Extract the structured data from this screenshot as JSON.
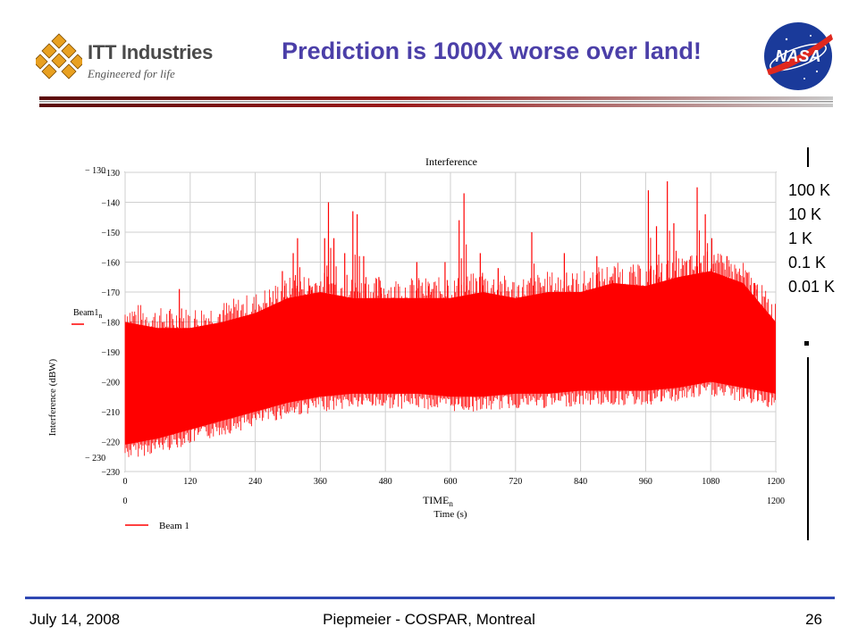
{
  "header": {
    "title": "Prediction is 1000X worse over land!",
    "itt_name": "ITT Industries",
    "itt_tagline": "Engineered for life",
    "nasa_text": "NASA",
    "accent_color": "#4b3fa8",
    "rule_color_dark": "#7a1010",
    "rule_color_light": "#c0c0c0"
  },
  "chart_data": {
    "type": "line",
    "title": "Interference",
    "ylabel": "Interference (dBW)",
    "xlabel": "TIME",
    "xlabel_sub": "n",
    "xlabel2": "Time (s)",
    "ylim": [
      -230,
      -130
    ],
    "xlim": [
      0,
      1200
    ],
    "yticks": [
      "-130",
      "-140",
      "-150",
      "-160",
      "-170",
      "-180",
      "-190",
      "-200",
      "-210",
      "-220",
      "-230"
    ],
    "xticks": [
      "0",
      "120",
      "240",
      "360",
      "480",
      "600",
      "720",
      "840",
      "960",
      "1080",
      "1200"
    ],
    "ymin_label": "− 230",
    "ymax_label": "− 130",
    "xmin_label": "0",
    "xmax_label": "1200",
    "grid": true,
    "series_color": "#ff0000",
    "series": [
      {
        "name": "Beam1",
        "name_sub": "n",
        "legend_label": "Beam 1",
        "x": [
          0,
          60,
          120,
          180,
          240,
          300,
          360,
          420,
          480,
          540,
          600,
          660,
          720,
          780,
          840,
          900,
          960,
          1020,
          1080,
          1140,
          1200
        ],
        "upper": [
          -180,
          -182,
          -182,
          -180,
          -177,
          -172,
          -170,
          -172,
          -172,
          -172,
          -172,
          -170,
          -172,
          -170,
          -170,
          -167,
          -168,
          -165,
          -163,
          -167,
          -180
        ],
        "lower": [
          -221,
          -219,
          -216,
          -213,
          -210,
          -207,
          -205,
          -204,
          -204,
          -204,
          -205,
          -205,
          -204,
          -204,
          -203,
          -203,
          -203,
          -202,
          -200,
          -202,
          -204
        ],
        "peaks": [
          {
            "x": 100,
            "y": -169
          },
          {
            "x": 290,
            "y": -163
          },
          {
            "x": 310,
            "y": -157
          },
          {
            "x": 318,
            "y": -152
          },
          {
            "x": 340,
            "y": -168
          },
          {
            "x": 368,
            "y": -152
          },
          {
            "x": 375,
            "y": -140
          },
          {
            "x": 385,
            "y": -152
          },
          {
            "x": 405,
            "y": -157
          },
          {
            "x": 420,
            "y": -143
          },
          {
            "x": 428,
            "y": -144
          },
          {
            "x": 440,
            "y": -158
          },
          {
            "x": 468,
            "y": -165
          },
          {
            "x": 538,
            "y": -160
          },
          {
            "x": 560,
            "y": -168
          },
          {
            "x": 590,
            "y": -160
          },
          {
            "x": 616,
            "y": -146
          },
          {
            "x": 625,
            "y": -137
          },
          {
            "x": 655,
            "y": -157
          },
          {
            "x": 688,
            "y": -162
          },
          {
            "x": 750,
            "y": -150
          },
          {
            "x": 810,
            "y": -157
          },
          {
            "x": 870,
            "y": -158
          },
          {
            "x": 895,
            "y": -165
          },
          {
            "x": 965,
            "y": -136
          },
          {
            "x": 980,
            "y": -148
          },
          {
            "x": 1000,
            "y": -133
          },
          {
            "x": 1012,
            "y": -147
          },
          {
            "x": 1055,
            "y": -135
          },
          {
            "x": 1070,
            "y": -144
          },
          {
            "x": 1082,
            "y": -152
          },
          {
            "x": 1110,
            "y": -158
          },
          {
            "x": 1160,
            "y": -167
          }
        ]
      }
    ]
  },
  "annotation": {
    "levels": [
      "100 K",
      "10 K",
      "1 K",
      "0.1 K",
      "0.01 K"
    ]
  },
  "footer": {
    "date": "July 14, 2008",
    "center": "Piepmeier - COSPAR, Montreal",
    "page": "26",
    "rule_color": "#2f48b3"
  }
}
